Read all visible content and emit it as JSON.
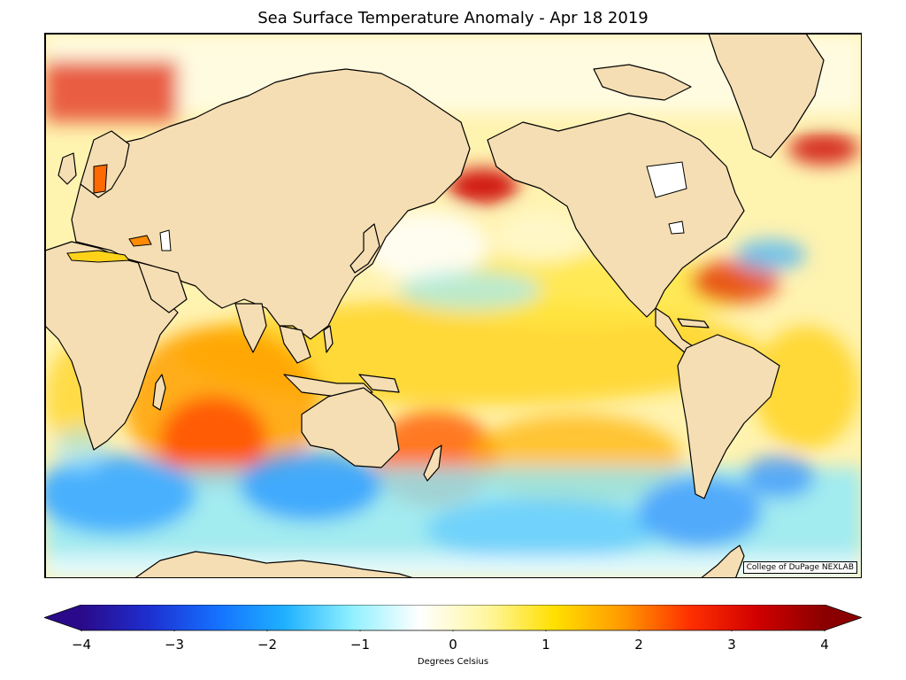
{
  "title": "Sea Surface Temperature Anomaly - Apr 18 2019",
  "credit": "College of DuPage NEXLAB",
  "colorbar": {
    "label": "Degrees Celsius",
    "min": -4,
    "max": 4,
    "ticks": [
      "−4",
      "−3",
      "−2",
      "−1",
      "0",
      "1",
      "2",
      "3",
      "4"
    ],
    "extend": "both",
    "stops": [
      "#2a0a8a",
      "#1e2fd0",
      "#1570ff",
      "#1fb0ff",
      "#8ff0ff",
      "#ffffff",
      "#fff6a0",
      "#ffe000",
      "#ff9a00",
      "#ff3000",
      "#d10000",
      "#8a0000"
    ]
  },
  "colors": {
    "land": "#f5deb3",
    "coast": "#000000",
    "ocean_default": "#fff2a8"
  }
}
